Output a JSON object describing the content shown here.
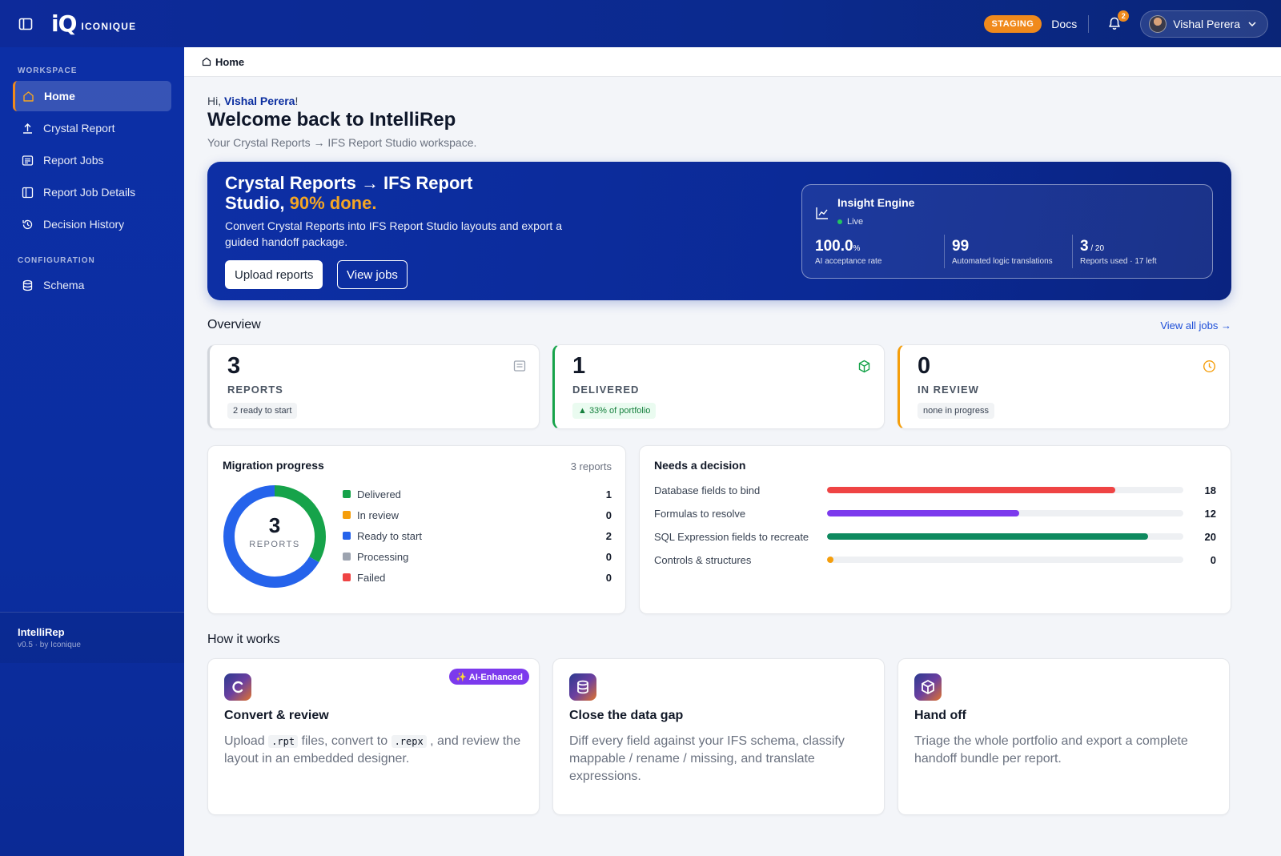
{
  "topbar": {
    "brand": "ICONIQUE",
    "logo_mark": "iQ",
    "env_badge": "STAGING",
    "docs": "Docs",
    "notif_count": "2",
    "user_name": "Vishal Perera"
  },
  "sidebar": {
    "workspace_label": "WORKSPACE",
    "config_label": "CONFIGURATION",
    "items": [
      {
        "label": "Home",
        "icon": "home-icon"
      },
      {
        "label": "Crystal Report",
        "icon": "upload-icon"
      },
      {
        "label": "Report Jobs",
        "icon": "list-icon"
      },
      {
        "label": "Report Job Details",
        "icon": "panel-icon"
      },
      {
        "label": "Decision History",
        "icon": "history-icon"
      }
    ],
    "config_items": [
      {
        "label": "Schema",
        "icon": "database-icon"
      }
    ],
    "footer": {
      "app": "IntelliRep",
      "version": "v0.5 · by Iconique"
    }
  },
  "breadcrumb": "Home",
  "greeting": {
    "prefix": "Hi, ",
    "name": "Vishal Perera",
    "suffix": "!"
  },
  "title": "Welcome back to IntelliRep",
  "subtitle": "Your Crystal Reports → IFS Report Studio workspace.",
  "hero": {
    "title": "Crystal Reports → IFS Report Studio, ",
    "pct": "90% done.",
    "desc": "Convert Crystal Reports into IFS Report Studio layouts and export a guided handoff package.",
    "btn_upload": "Upload reports",
    "btn_jobs": "View jobs",
    "insight": {
      "title": "Insight Engine",
      "status": "Live",
      "stats": [
        {
          "value": "100.0",
          "unit": "%",
          "label": "AI acceptance rate"
        },
        {
          "value": "99",
          "unit": "",
          "label": "Automated logic translations"
        },
        {
          "value": "3",
          "unit": " / 20",
          "label": "Reports used · 17 left"
        }
      ]
    }
  },
  "overview": {
    "title": "Overview",
    "view_all": "View all jobs →",
    "cards": [
      {
        "value": "3",
        "label": "REPORTS",
        "pill": "2 ready to start",
        "accent": "#9ca3af"
      },
      {
        "value": "1",
        "label": "DELIVERED",
        "pill": "▲ 33% of portfolio",
        "accent": "#16a34a"
      },
      {
        "value": "0",
        "label": "IN REVIEW",
        "pill": "none in progress",
        "accent": "#f59e0b"
      }
    ]
  },
  "migration": {
    "title": "Migration progress",
    "note": "3 reports",
    "total": "3",
    "total_label": "REPORTS",
    "legend": [
      {
        "label": "Delivered",
        "count": 1,
        "color": "#16a34a"
      },
      {
        "label": "In review",
        "count": 0,
        "color": "#f59e0b"
      },
      {
        "label": "Ready to start",
        "count": 2,
        "color": "#2563eb"
      },
      {
        "label": "Processing",
        "count": 0,
        "color": "#9ca3af"
      },
      {
        "label": "Failed",
        "count": 0,
        "color": "#ef4444"
      }
    ]
  },
  "decision": {
    "title": "Needs a decision",
    "max": 20,
    "rows": [
      {
        "label": "Database fields to bind",
        "value": 18,
        "color": "#ef4444"
      },
      {
        "label": "Formulas to resolve",
        "value": 12,
        "color": "#7c3aed"
      },
      {
        "label": "SQL Expression fields to recreate",
        "value": 20,
        "color": "#0f8a5f"
      },
      {
        "label": "Controls & structures",
        "value": 0,
        "color": "#f59e0b"
      }
    ]
  },
  "how": {
    "title": "How it works",
    "badge": "✨ AI-Enhanced",
    "cards": [
      {
        "title": "Convert & review",
        "desc_a": "Upload ",
        "code_a": ".rpt",
        "desc_b": " files, convert to ",
        "code_b": ".repx",
        "desc_c": " , and review the layout in an embedded designer.",
        "icon": "convert-icon"
      },
      {
        "title": "Close the data gap",
        "desc": "Diff every field against your IFS schema, classify mappable / rename / missing, and translate expressions.",
        "icon": "database-icon"
      },
      {
        "title": "Hand off",
        "desc": "Triage the whole portfolio and export a complete handoff bundle per report.",
        "icon": "package-icon"
      }
    ]
  }
}
